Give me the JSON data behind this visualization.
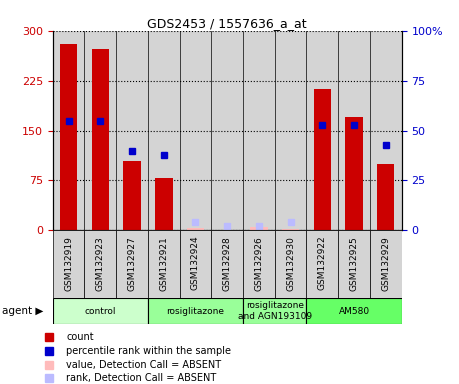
{
  "title": "GDS2453 / 1557636_a_at",
  "samples": [
    "GSM132919",
    "GSM132923",
    "GSM132927",
    "GSM132921",
    "GSM132924",
    "GSM132928",
    "GSM132926",
    "GSM132930",
    "GSM132922",
    "GSM132925",
    "GSM132929"
  ],
  "count_values": [
    280,
    272,
    105,
    78,
    null,
    null,
    null,
    null,
    213,
    170,
    100
  ],
  "rank_values": [
    55,
    55,
    40,
    38,
    null,
    null,
    null,
    null,
    53,
    53,
    43
  ],
  "count_absent": [
    null,
    null,
    null,
    null,
    3,
    1,
    5,
    2,
    null,
    null,
    null
  ],
  "rank_absent": [
    null,
    null,
    null,
    null,
    4,
    2,
    2,
    4,
    null,
    null,
    null
  ],
  "groups": [
    {
      "label": "control",
      "start": 0,
      "end": 3,
      "color": "#ccffcc"
    },
    {
      "label": "rosiglitazone",
      "start": 3,
      "end": 6,
      "color": "#99ff99"
    },
    {
      "label": "rosiglitazone\nand AGN193109",
      "start": 6,
      "end": 8,
      "color": "#99ff99"
    },
    {
      "label": "AM580",
      "start": 8,
      "end": 11,
      "color": "#66ff66"
    }
  ],
  "ylim_left": [
    0,
    300
  ],
  "ylim_right": [
    0,
    100
  ],
  "yticks_left": [
    0,
    75,
    150,
    225,
    300
  ],
  "yticks_right": [
    0,
    25,
    50,
    75,
    100
  ],
  "left_tick_color": "#cc0000",
  "right_tick_color": "#0000cc",
  "bar_color": "#cc0000",
  "rank_color": "#0000cc",
  "absent_count_color": "#ffbbbb",
  "absent_rank_color": "#bbbbff",
  "col_bg_color": "#d4d4d4",
  "legend_items": [
    {
      "color": "#cc0000",
      "label": "count"
    },
    {
      "color": "#0000cc",
      "label": "percentile rank within the sample"
    },
    {
      "color": "#ffbbbb",
      "label": "value, Detection Call = ABSENT"
    },
    {
      "color": "#bbbbff",
      "label": "rank, Detection Call = ABSENT"
    }
  ]
}
